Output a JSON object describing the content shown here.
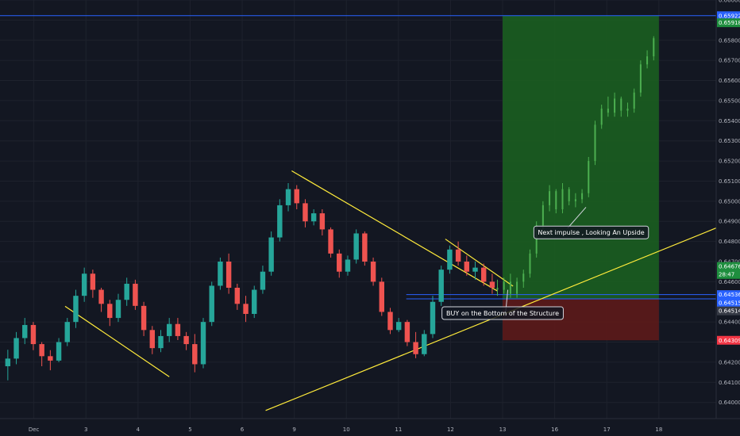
{
  "chart_data": {
    "type": "candlestick",
    "instrument_note": "",
    "colors": {
      "background": "#131722",
      "bull": "#26a69a",
      "bear": "#ef5350",
      "projection": "#4caf50",
      "trendline": "#ffeb3b",
      "target_zone": "#1b5e20",
      "stop_zone": "#5d1a1a",
      "level_line": "#2962ff"
    },
    "x_axis": {
      "ticks": [
        {
          "label": "Dec",
          "t": 0
        },
        {
          "label": "3",
          "t": 2
        },
        {
          "label": "4",
          "t": 4
        },
        {
          "label": "5",
          "t": 6
        },
        {
          "label": "6",
          "t": 8
        },
        {
          "label": "9",
          "t": 10
        },
        {
          "label": "10",
          "t": 12
        },
        {
          "label": "11",
          "t": 14
        },
        {
          "label": "12",
          "t": 16
        },
        {
          "label": "13",
          "t": 18
        },
        {
          "label": "16",
          "t": 20
        },
        {
          "label": "17",
          "t": 22
        },
        {
          "label": "18",
          "t": 24
        }
      ],
      "range": [
        -1.3,
        26.2
      ]
    },
    "y_axis": {
      "range": [
        0.6392,
        0.66
      ],
      "ticks": [
        "0.66000",
        "0.65900",
        "0.65800",
        "0.65700",
        "0.65600",
        "0.65500",
        "0.65400",
        "0.65300",
        "0.65200",
        "0.65100",
        "0.65000",
        "0.64900",
        "0.64800",
        "0.64700",
        "0.64600",
        "0.64400",
        "0.64300",
        "0.64200",
        "0.64100",
        "0.64000"
      ]
    },
    "price_tags": [
      {
        "label": "0.65922",
        "value": 0.65922,
        "color": "#2962ff"
      },
      {
        "label": "0.65918",
        "value": 0.65887,
        "color": "#1e8e3e"
      },
      {
        "label": "0.64676",
        "value": 0.64676,
        "color": "#1e8e3e"
      },
      {
        "label": "28:47",
        "value": 0.64636,
        "color": "#1e8e3e"
      },
      {
        "label": "0.64536",
        "value": 0.64536,
        "color": "#2962ff"
      },
      {
        "label": "0.64515",
        "value": 0.64495,
        "color": "#2962ff"
      },
      {
        "label": "0.64514",
        "value": 0.64455,
        "color": "#363a45"
      },
      {
        "label": "0.64309",
        "value": 0.64309,
        "color": "#f23645"
      }
    ],
    "levels": [
      {
        "value": 0.65922,
        "t0": -1.3,
        "t1": 26.2
      },
      {
        "value": 0.64536,
        "t0": 14.3,
        "t1": 26.2
      },
      {
        "value": 0.64515,
        "t0": 14.3,
        "t1": 26.2
      }
    ],
    "zones": [
      {
        "kind": "target",
        "t0": 18.0,
        "t1": 24.0,
        "top": 0.65922,
        "bottom": 0.64514
      },
      {
        "kind": "stop",
        "t0": 18.0,
        "t1": 24.0,
        "top": 0.64514,
        "bottom": 0.64309
      }
    ],
    "trendlines": [
      {
        "t0": 1.2,
        "v0": 0.64478,
        "t1": 5.2,
        "v1": 0.64128
      },
      {
        "t0": 9.9,
        "v0": 0.65151,
        "t1": 17.8,
        "v1": 0.64554
      },
      {
        "t0": 15.8,
        "v0": 0.64812,
        "t1": 18.4,
        "v1": 0.64578
      },
      {
        "t0": 8.9,
        "v0": 0.6396,
        "t1": 26.2,
        "v1": 0.64867
      }
    ],
    "arrows": [
      {
        "t0": 18.1,
        "v0": 0.6443,
        "t1": 18.2,
        "v1": 0.6456
      },
      {
        "t0": 21.2,
        "v0": 0.6497,
        "t1": 20.5,
        "v1": 0.64867
      }
    ],
    "annotations": [
      {
        "text": "BUY on the Bottom of the Structure",
        "t": 18.0,
        "v": 0.64444
      },
      {
        "text": "Next impulse , Looking An Upside",
        "t": 21.4,
        "v": 0.64845
      }
    ],
    "candles": [
      [
        0.6418,
        0.64262,
        0.6411,
        0.64218
      ],
      [
        0.64218,
        0.6435,
        0.6419,
        0.6432
      ],
      [
        0.6432,
        0.6442,
        0.6429,
        0.64385
      ],
      [
        0.64385,
        0.644,
        0.6426,
        0.6429
      ],
      [
        0.6429,
        0.643,
        0.6418,
        0.6423
      ],
      [
        0.6423,
        0.6426,
        0.6416,
        0.64208
      ],
      [
        0.64208,
        0.6432,
        0.642,
        0.643
      ],
      [
        0.643,
        0.6442,
        0.6428,
        0.644
      ],
      [
        0.644,
        0.6456,
        0.6437,
        0.6453
      ],
      [
        0.6453,
        0.6467,
        0.645,
        0.6464
      ],
      [
        0.6464,
        0.6466,
        0.6452,
        0.6456
      ],
      [
        0.6456,
        0.6457,
        0.6445,
        0.6449
      ],
      [
        0.6449,
        0.6451,
        0.6438,
        0.6442
      ],
      [
        0.6442,
        0.6454,
        0.644,
        0.6451
      ],
      [
        0.6451,
        0.6462,
        0.6448,
        0.6459
      ],
      [
        0.6459,
        0.6461,
        0.6446,
        0.6448
      ],
      [
        0.6448,
        0.645,
        0.6433,
        0.6436
      ],
      [
        0.6436,
        0.6438,
        0.6424,
        0.6427
      ],
      [
        0.6427,
        0.6436,
        0.6425,
        0.6433
      ],
      [
        0.6433,
        0.6442,
        0.643,
        0.6439
      ],
      [
        0.6439,
        0.6442,
        0.6431,
        0.6433
      ],
      [
        0.6433,
        0.6435,
        0.6426,
        0.6429
      ],
      [
        0.6429,
        0.6434,
        0.6415,
        0.6419
      ],
      [
        0.6419,
        0.6442,
        0.6417,
        0.644
      ],
      [
        0.644,
        0.646,
        0.6438,
        0.6458
      ],
      [
        0.6458,
        0.6472,
        0.6456,
        0.647
      ],
      [
        0.647,
        0.6474,
        0.6454,
        0.6457
      ],
      [
        0.6457,
        0.6459,
        0.6446,
        0.6449
      ],
      [
        0.6449,
        0.6453,
        0.644,
        0.6444
      ],
      [
        0.6444,
        0.6458,
        0.6442,
        0.6456
      ],
      [
        0.6456,
        0.6468,
        0.6454,
        0.6465
      ],
      [
        0.6465,
        0.6485,
        0.6463,
        0.6482
      ],
      [
        0.6482,
        0.6501,
        0.648,
        0.6498
      ],
      [
        0.6498,
        0.6509,
        0.6495,
        0.6506
      ],
      [
        0.6506,
        0.6508,
        0.6496,
        0.6499
      ],
      [
        0.6499,
        0.6501,
        0.6487,
        0.649
      ],
      [
        0.649,
        0.6496,
        0.6488,
        0.6494
      ],
      [
        0.6494,
        0.6496,
        0.6483,
        0.6486
      ],
      [
        0.6486,
        0.6487,
        0.6472,
        0.6474
      ],
      [
        0.6474,
        0.6476,
        0.6462,
        0.6465
      ],
      [
        0.6465,
        0.6473,
        0.6463,
        0.6471
      ],
      [
        0.6471,
        0.6486,
        0.6469,
        0.6484
      ],
      [
        0.6484,
        0.6485,
        0.6468,
        0.647
      ],
      [
        0.647,
        0.6472,
        0.6458,
        0.646
      ],
      [
        0.646,
        0.6462,
        0.6443,
        0.6445
      ],
      [
        0.6445,
        0.6447,
        0.6434,
        0.6436
      ],
      [
        0.6436,
        0.6442,
        0.6435,
        0.644
      ],
      [
        0.644,
        0.6441,
        0.6428,
        0.643
      ],
      [
        0.643,
        0.6435,
        0.6422,
        0.6424
      ],
      [
        0.6424,
        0.6436,
        0.6423,
        0.6434
      ],
      [
        0.6434,
        0.6453,
        0.6432,
        0.645
      ],
      [
        0.645,
        0.6468,
        0.6448,
        0.6466
      ],
      [
        0.6466,
        0.6478,
        0.6464,
        0.6476
      ],
      [
        0.6476,
        0.648,
        0.6468,
        0.647
      ],
      [
        0.647,
        0.6473,
        0.6463,
        0.6465
      ],
      [
        0.6465,
        0.647,
        0.6461,
        0.6467
      ],
      [
        0.6467,
        0.6469,
        0.6458,
        0.646
      ],
      [
        0.646,
        0.6464,
        0.6454,
        0.6457
      ]
    ],
    "projection": [
      [
        0.6457,
        0.6461,
        0.6453,
        0.6456
      ],
      [
        0.6456,
        0.6462,
        0.6454,
        0.646
      ],
      [
        0.646,
        0.6464,
        0.6452,
        0.6454
      ],
      [
        0.6454,
        0.6462,
        0.6452,
        0.646
      ],
      [
        0.646,
        0.6466,
        0.6457,
        0.6464
      ],
      [
        0.6464,
        0.6476,
        0.6462,
        0.6474
      ],
      [
        0.6474,
        0.649,
        0.6472,
        0.6488
      ],
      [
        0.6488,
        0.65,
        0.6486,
        0.6498
      ],
      [
        0.6498,
        0.6508,
        0.6495,
        0.6505
      ],
      [
        0.6505,
        0.6506,
        0.6494,
        0.6496
      ],
      [
        0.6496,
        0.6509,
        0.6494,
        0.6506
      ],
      [
        0.6506,
        0.6507,
        0.6498,
        0.65
      ],
      [
        0.65,
        0.6504,
        0.6497,
        0.6501
      ],
      [
        0.6501,
        0.6506,
        0.6499,
        0.6504
      ],
      [
        0.6504,
        0.6522,
        0.6502,
        0.652
      ],
      [
        0.652,
        0.654,
        0.6518,
        0.6538
      ],
      [
        0.6538,
        0.6548,
        0.6536,
        0.6546
      ],
      [
        0.6546,
        0.6552,
        0.6542,
        0.6544
      ],
      [
        0.6544,
        0.6554,
        0.6542,
        0.6551
      ],
      [
        0.6551,
        0.6552,
        0.6542,
        0.6545
      ],
      [
        0.6545,
        0.6549,
        0.6542,
        0.6546
      ],
      [
        0.6546,
        0.6556,
        0.6544,
        0.6554
      ],
      [
        0.6554,
        0.657,
        0.6552,
        0.6568
      ],
      [
        0.6568,
        0.6575,
        0.6566,
        0.6572
      ],
      [
        0.6572,
        0.6582,
        0.657,
        0.6581
      ]
    ]
  }
}
